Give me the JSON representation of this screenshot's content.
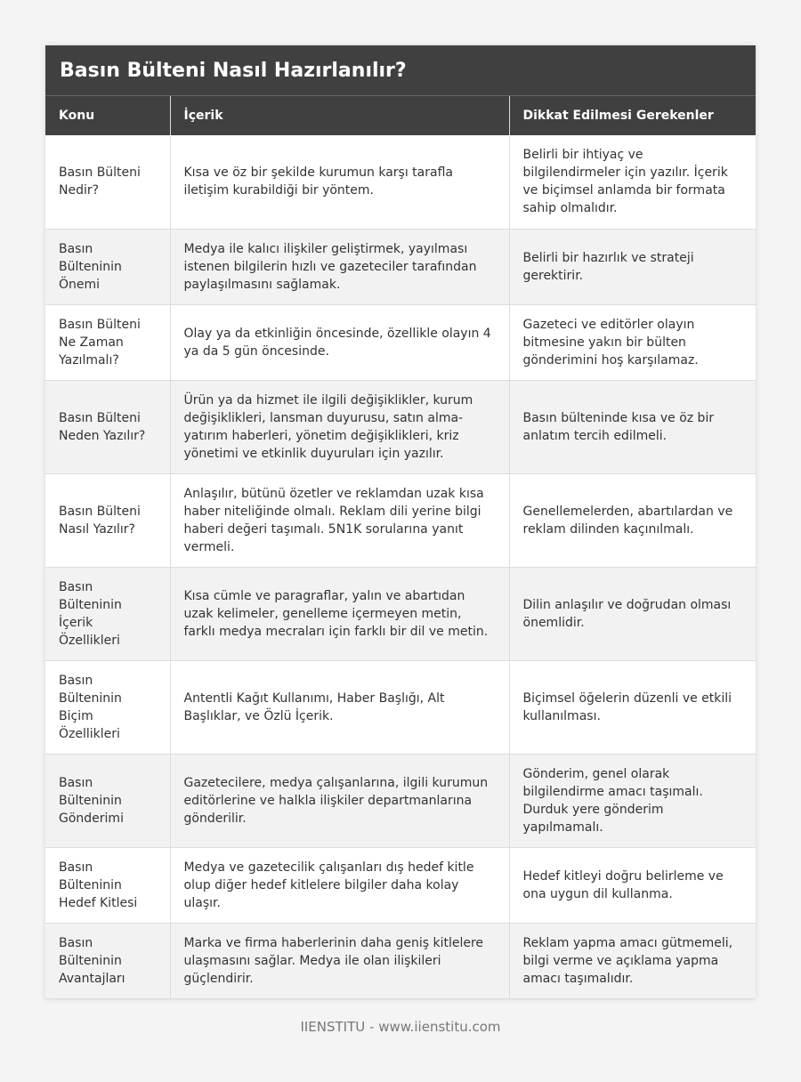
{
  "title": "Basın Bülteni Nasıl Hazırlanılır?",
  "columns": [
    "Konu",
    "İçerik",
    "Dikkat Edilmesi Gerekenler"
  ],
  "rows": [
    [
      "Basın Bülteni Nedir?",
      "Kısa ve öz bir şekilde kurumun karşı tarafla iletişim kurabildiği bir yöntem.",
      "Belirli bir ihtiyaç ve bilgilendirmeler için yazılır. İçerik ve biçimsel anlamda bir formata sahip olmalıdır."
    ],
    [
      "Basın Bülteninin Önemi",
      "Medya ile kalıcı ilişkiler geliştirmek, yayılması istenen bilgilerin hızlı ve gazeteciler tarafından paylaşılmasını sağlamak.",
      "Belirli bir hazırlık ve strateji gerektirir."
    ],
    [
      "Basın Bülteni Ne Zaman Yazılmalı?",
      "Olay ya da etkinliğin öncesinde, özellikle olayın 4 ya da 5 gün öncesinde.",
      "Gazeteci ve editörler olayın bitmesine yakın bir bülten gönderimini hoş karşılamaz."
    ],
    [
      "Basın Bülteni Neden Yazılır?",
      "Ürün ya da hizmet ile ilgili değişiklikler, kurum değişiklikleri, lansman duyurusu, satın alma-yatırım haberleri, yönetim değişiklikleri, kriz yönetimi ve etkinlik duyuruları için yazılır.",
      "Basın bülteninde kısa ve öz bir anlatım tercih edilmeli."
    ],
    [
      "Basın Bülteni Nasıl Yazılır?",
      "Anlaşılır, bütünü özetler ve reklamdan uzak kısa haber niteliğinde olmalı. Reklam dili yerine bilgi haberi değeri taşımalı. 5N1K sorularına yanıt vermeli.",
      "Genellemelerden, abartılardan ve reklam dilinden kaçınılmalı."
    ],
    [
      "Basın Bülteninin İçerik Özellikleri",
      "Kısa cümle ve paragraflar, yalın ve abartıdan uzak kelimeler, genelleme içermeyen metin, farklı medya mecraları için farklı bir dil ve metin.",
      "Dilin anlaşılır ve doğrudan olması önemlidir."
    ],
    [
      "Basın Bülteninin Biçim Özellikleri",
      "Antentli Kağıt Kullanımı, Haber Başlığı, Alt Başlıklar, ve Özlü İçerik.",
      "Biçimsel öğelerin düzenli ve etkili kullanılması."
    ],
    [
      "Basın Bülteninin Gönderimi",
      "Gazetecilere, medya çalışanlarına, ilgili kurumun editörlerine ve halkla ilişkiler departmanlarına gönderilir.",
      "Gönderim, genel olarak bilgilendirme amacı taşımalı. Durduk yere gönderim yapılmamalı."
    ],
    [
      "Basın Bülteninin Hedef Kitlesi",
      "Medya ve gazetecilik çalışanları dış hedef kitle olup diğer hedef kitlelere bilgiler daha kolay ulaşır.",
      "Hedef kitleyi doğru belirleme ve ona uygun dil kullanma."
    ],
    [
      "Basın Bülteninin Avantajları",
      "Marka ve firma haberlerinin daha geniş kitlelere ulaşmasını sağlar. Medya ile olan ilişkileri güçlendirir.",
      "Reklam yapma amacı gütmemeli, bilgi verme ve açıklama yapma amacı taşımalıdır."
    ]
  ],
  "footer": "IIENSTITU - www.iienstitu.com"
}
